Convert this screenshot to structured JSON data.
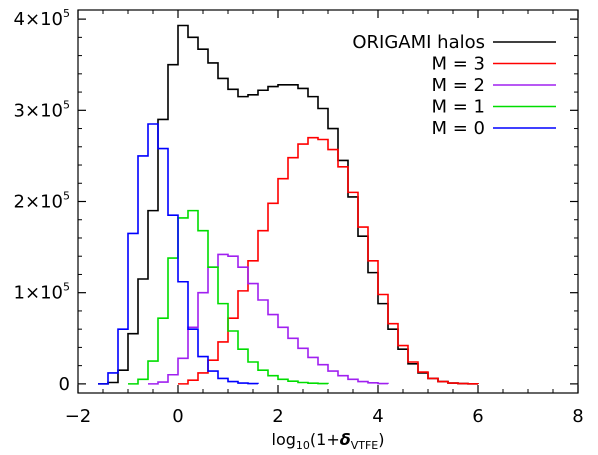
{
  "chart_data": {
    "type": "line",
    "step": true,
    "xlabel": {
      "prefix": "log",
      "sub": "10",
      "mid": "(1+",
      "symbol": "δ",
      "symbol_sub": "VTFE",
      "suffix": ")"
    },
    "ylabel": "",
    "xlim": [
      -2,
      8
    ],
    "ylim": [
      -10000,
      410000
    ],
    "x_ticks": [
      -2,
      0,
      2,
      4,
      6,
      8
    ],
    "x_tick_labels": [
      "−2",
      "0",
      "2",
      "4",
      "6",
      "8"
    ],
    "y_ticks": [
      {
        "value": 0,
        "mant": "0",
        "exp": ""
      },
      {
        "value": 100000,
        "mant": "1×10",
        "exp": "5"
      },
      {
        "value": 200000,
        "mant": "2×10",
        "exp": "5"
      },
      {
        "value": 300000,
        "mant": "3×10",
        "exp": "5"
      },
      {
        "value": 400000,
        "mant": "4×10",
        "exp": "5"
      }
    ],
    "grid": false,
    "legend_position": "top-right",
    "series": [
      {
        "name": "ORIGAMI halos",
        "color": "#000000",
        "points": [
          [
            -1.6,
            0
          ],
          [
            -1.4,
            1500
          ],
          [
            -1.2,
            15000
          ],
          [
            -1.0,
            55000
          ],
          [
            -0.8,
            115000
          ],
          [
            -0.6,
            190000
          ],
          [
            -0.4,
            290000
          ],
          [
            -0.2,
            350000
          ],
          [
            0.0,
            393000
          ],
          [
            0.2,
            380000
          ],
          [
            0.4,
            367000
          ],
          [
            0.6,
            352000
          ],
          [
            0.8,
            335000
          ],
          [
            1.0,
            323000
          ],
          [
            1.2,
            315000
          ],
          [
            1.4,
            317000
          ],
          [
            1.6,
            322000
          ],
          [
            1.8,
            326000
          ],
          [
            2.0,
            328000
          ],
          [
            2.2,
            328000
          ],
          [
            2.4,
            324000
          ],
          [
            2.6,
            315000
          ],
          [
            2.8,
            302000
          ],
          [
            3.0,
            280000
          ],
          [
            3.2,
            245000
          ],
          [
            3.4,
            205000
          ],
          [
            3.6,
            162000
          ],
          [
            3.8,
            122000
          ],
          [
            4.0,
            88000
          ],
          [
            4.2,
            60000
          ],
          [
            4.4,
            38000
          ],
          [
            4.6,
            22000
          ],
          [
            4.8,
            12000
          ],
          [
            5.0,
            6000
          ],
          [
            5.2,
            2500
          ],
          [
            5.4,
            900
          ],
          [
            5.6,
            300
          ],
          [
            5.8,
            100
          ],
          [
            6.0,
            0
          ]
        ]
      },
      {
        "name": "M = 3",
        "color": "#ff0000",
        "points": [
          [
            0.0,
            0
          ],
          [
            0.2,
            4000
          ],
          [
            0.4,
            12000
          ],
          [
            0.6,
            26000
          ],
          [
            0.8,
            46000
          ],
          [
            1.0,
            72000
          ],
          [
            1.2,
            102000
          ],
          [
            1.4,
            135000
          ],
          [
            1.6,
            168000
          ],
          [
            1.8,
            198000
          ],
          [
            2.0,
            225000
          ],
          [
            2.2,
            248000
          ],
          [
            2.4,
            263000
          ],
          [
            2.6,
            270000
          ],
          [
            2.8,
            268000
          ],
          [
            3.0,
            257000
          ],
          [
            3.2,
            238000
          ],
          [
            3.4,
            210000
          ],
          [
            3.6,
            172000
          ],
          [
            3.8,
            135000
          ],
          [
            4.0,
            98000
          ],
          [
            4.2,
            66000
          ],
          [
            4.4,
            42000
          ],
          [
            4.6,
            24000
          ],
          [
            4.8,
            13000
          ],
          [
            5.0,
            6000
          ],
          [
            5.2,
            2500
          ],
          [
            5.4,
            900
          ],
          [
            5.6,
            300
          ],
          [
            5.8,
            80
          ],
          [
            6.0,
            0
          ]
        ]
      },
      {
        "name": "M = 2",
        "color": "#a020f0",
        "points": [
          [
            -0.6,
            0
          ],
          [
            -0.4,
            2000
          ],
          [
            -0.2,
            10000
          ],
          [
            0.0,
            28000
          ],
          [
            0.2,
            62000
          ],
          [
            0.4,
            100000
          ],
          [
            0.6,
            128000
          ],
          [
            0.8,
            142000
          ],
          [
            1.0,
            140000
          ],
          [
            1.2,
            128000
          ],
          [
            1.4,
            110000
          ],
          [
            1.6,
            92000
          ],
          [
            1.8,
            76000
          ],
          [
            2.0,
            62000
          ],
          [
            2.2,
            50000
          ],
          [
            2.4,
            39000
          ],
          [
            2.6,
            29000
          ],
          [
            2.8,
            21000
          ],
          [
            3.0,
            14000
          ],
          [
            3.2,
            9000
          ],
          [
            3.4,
            5000
          ],
          [
            3.6,
            2500
          ],
          [
            3.8,
            1200
          ],
          [
            4.0,
            400
          ],
          [
            4.2,
            0
          ]
        ]
      },
      {
        "name": "M = 1",
        "color": "#00dd00",
        "points": [
          [
            -1.0,
            0
          ],
          [
            -0.8,
            5000
          ],
          [
            -0.6,
            25000
          ],
          [
            -0.4,
            72000
          ],
          [
            -0.2,
            138000
          ],
          [
            0.0,
            182000
          ],
          [
            0.2,
            190000
          ],
          [
            0.4,
            168000
          ],
          [
            0.6,
            128000
          ],
          [
            0.8,
            88000
          ],
          [
            1.0,
            58000
          ],
          [
            1.2,
            38000
          ],
          [
            1.4,
            24000
          ],
          [
            1.6,
            15000
          ],
          [
            1.8,
            9000
          ],
          [
            2.0,
            5000
          ],
          [
            2.2,
            3000
          ],
          [
            2.4,
            1500
          ],
          [
            2.6,
            800
          ],
          [
            2.8,
            300
          ],
          [
            3.0,
            0
          ]
        ]
      },
      {
        "name": "M = 0",
        "color": "#0000ff",
        "points": [
          [
            -1.6,
            0
          ],
          [
            -1.4,
            12000
          ],
          [
            -1.2,
            60000
          ],
          [
            -1.0,
            165000
          ],
          [
            -0.8,
            250000
          ],
          [
            -0.6,
            285000
          ],
          [
            -0.4,
            258000
          ],
          [
            -0.2,
            185000
          ],
          [
            0.0,
            112000
          ],
          [
            0.2,
            60000
          ],
          [
            0.4,
            30000
          ],
          [
            0.6,
            14000
          ],
          [
            0.8,
            6000
          ],
          [
            1.0,
            2500
          ],
          [
            1.2,
            900
          ],
          [
            1.4,
            300
          ],
          [
            1.6,
            0
          ]
        ]
      }
    ]
  }
}
